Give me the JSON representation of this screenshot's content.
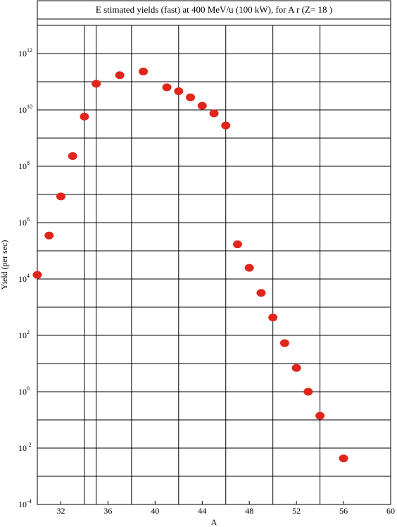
{
  "chart_data": {
    "type": "scatter",
    "title": "E stimated yields (fast) at 400  MeV/u (100  kW), for A r (Z= 18 )",
    "xlabel": "A",
    "ylabel": "Yield (per sec)",
    "xlim": [
      30,
      60
    ],
    "ylim": [
      -4,
      13
    ],
    "y_scale": "log10",
    "x_ticks": [
      32,
      36,
      40,
      44,
      48,
      52,
      56,
      60
    ],
    "x_tick_labels": [
      "32",
      "36",
      "40",
      "44",
      "48",
      "52",
      "56",
      "60"
    ],
    "y_tick_labels": [
      {
        "base": "10",
        "exp": "-4"
      },
      {
        "base": "10",
        "exp": "-2"
      },
      {
        "base": "10",
        "exp": "0"
      },
      {
        "base": "10",
        "exp": "2"
      },
      {
        "base": "10",
        "exp": "4"
      },
      {
        "base": "10",
        "exp": "6"
      },
      {
        "base": "10",
        "exp": "8"
      },
      {
        "base": "10",
        "exp": "10"
      },
      {
        "base": "10",
        "exp": "12"
      }
    ],
    "x_grid": [
      34,
      35,
      38,
      42,
      46,
      50,
      54
    ],
    "y_grid_every": 1,
    "marker_color": "#e0261b",
    "points": [
      {
        "x": 30,
        "y": 14000.0
      },
      {
        "x": 31,
        "y": 350000.0
      },
      {
        "x": 32,
        "y": 8500000.0
      },
      {
        "x": 33,
        "y": 230000000.0
      },
      {
        "x": 34,
        "y": 5800000000.0
      },
      {
        "x": 35,
        "y": 85000000000.0
      },
      {
        "x": 37,
        "y": 170000000000.0
      },
      {
        "x": 39,
        "y": 230000000000.0
      },
      {
        "x": 41,
        "y": 63000000000.0
      },
      {
        "x": 42,
        "y": 46000000000.0
      },
      {
        "x": 43,
        "y": 28000000000.0
      },
      {
        "x": 44,
        "y": 14000000000.0
      },
      {
        "x": 45,
        "y": 7500000000.0
      },
      {
        "x": 46,
        "y": 2800000000.0
      },
      {
        "x": 47,
        "y": 170000.0
      },
      {
        "x": 48,
        "y": 25000.0
      },
      {
        "x": 49,
        "y": 3200.0
      },
      {
        "x": 50,
        "y": 430.0
      },
      {
        "x": 51,
        "y": 53.0
      },
      {
        "x": 52,
        "y": 7.0
      },
      {
        "x": 53,
        "y": 1.0
      },
      {
        "x": 54,
        "y": 0.14
      },
      {
        "x": 56,
        "y": 0.0043
      }
    ]
  }
}
